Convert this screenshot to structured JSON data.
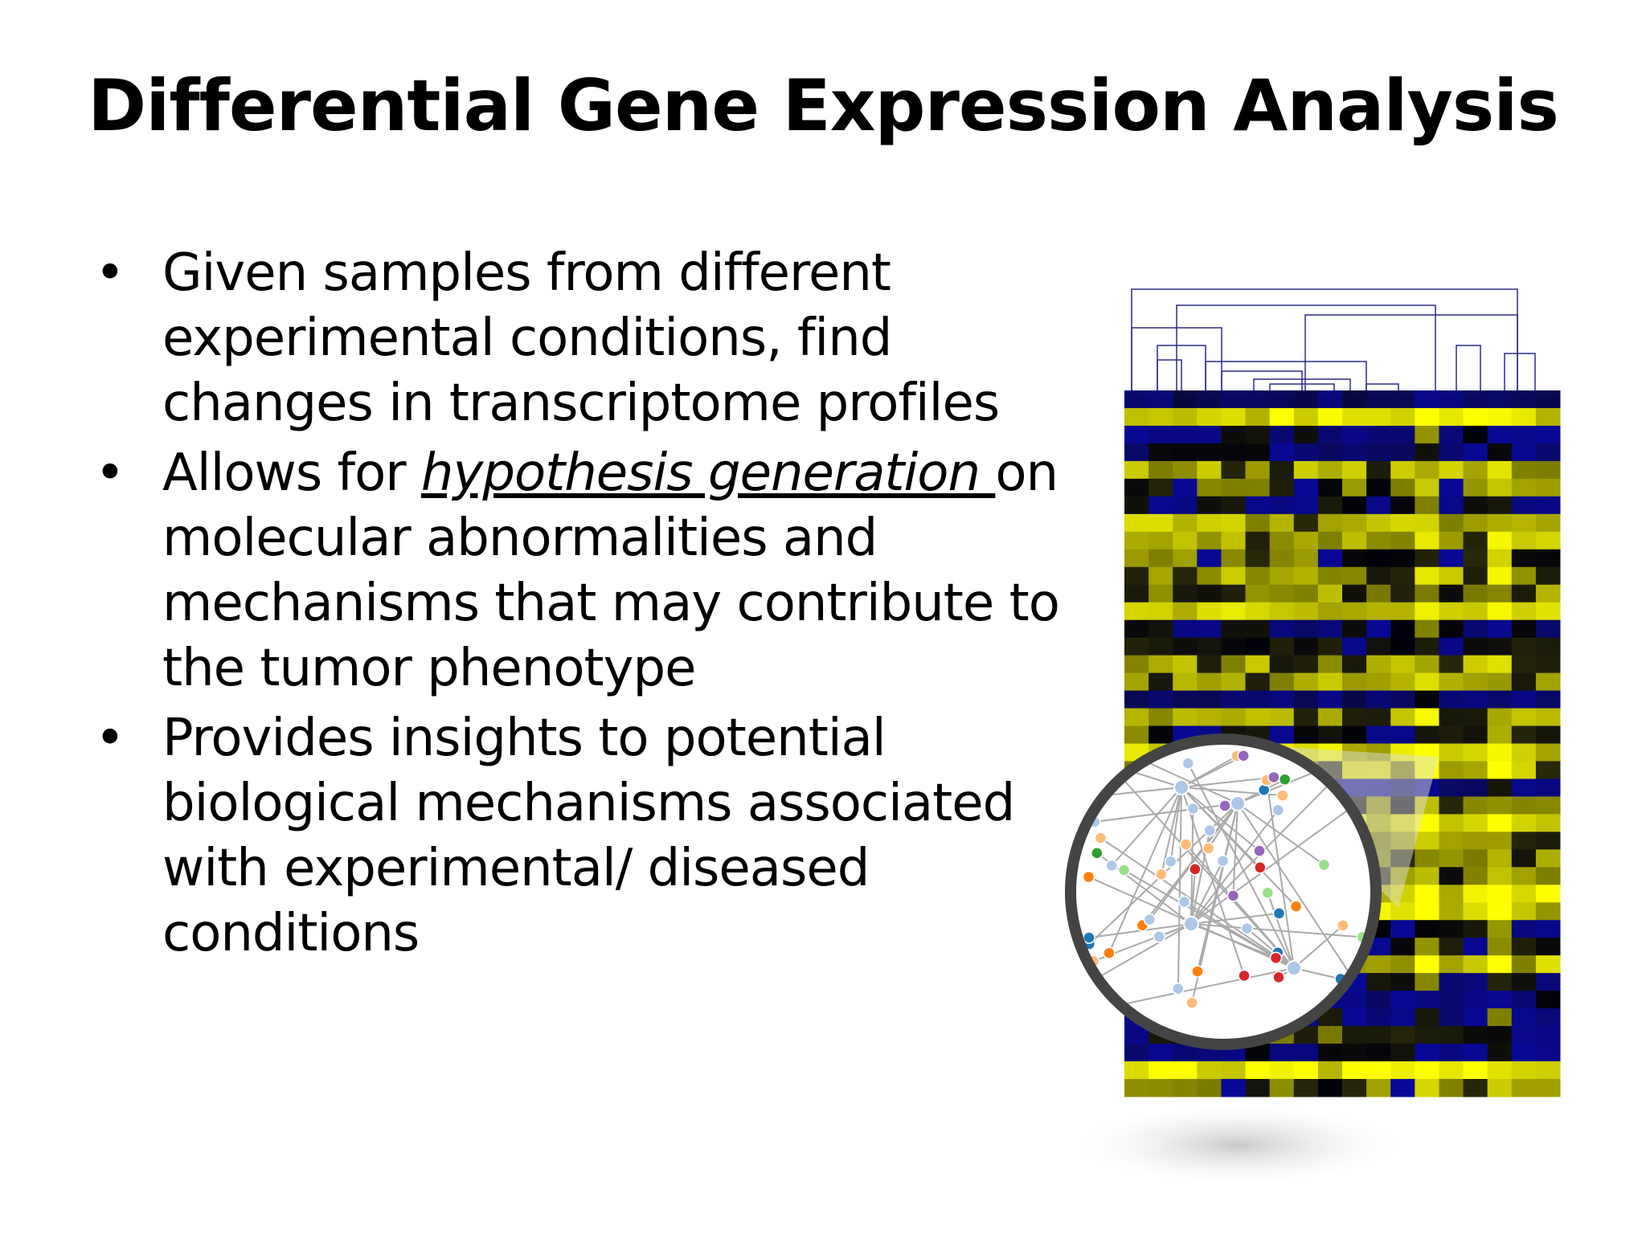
{
  "title": "Differential Gene Expression Analysis",
  "bullets": [
    {
      "parts": [
        "Given samples from different experimental conditions, find changes in transcriptome profiles"
      ]
    },
    {
      "parts": [
        "Allows for ",
        "hypothesis generation ",
        "on molecular abnormalities and mechanisms that may contribute to the tumor phenotype"
      ]
    },
    {
      "parts": [
        "Provides insights to potential biological mechanisms associated with experimental/ diseased conditions"
      ]
    }
  ]
}
